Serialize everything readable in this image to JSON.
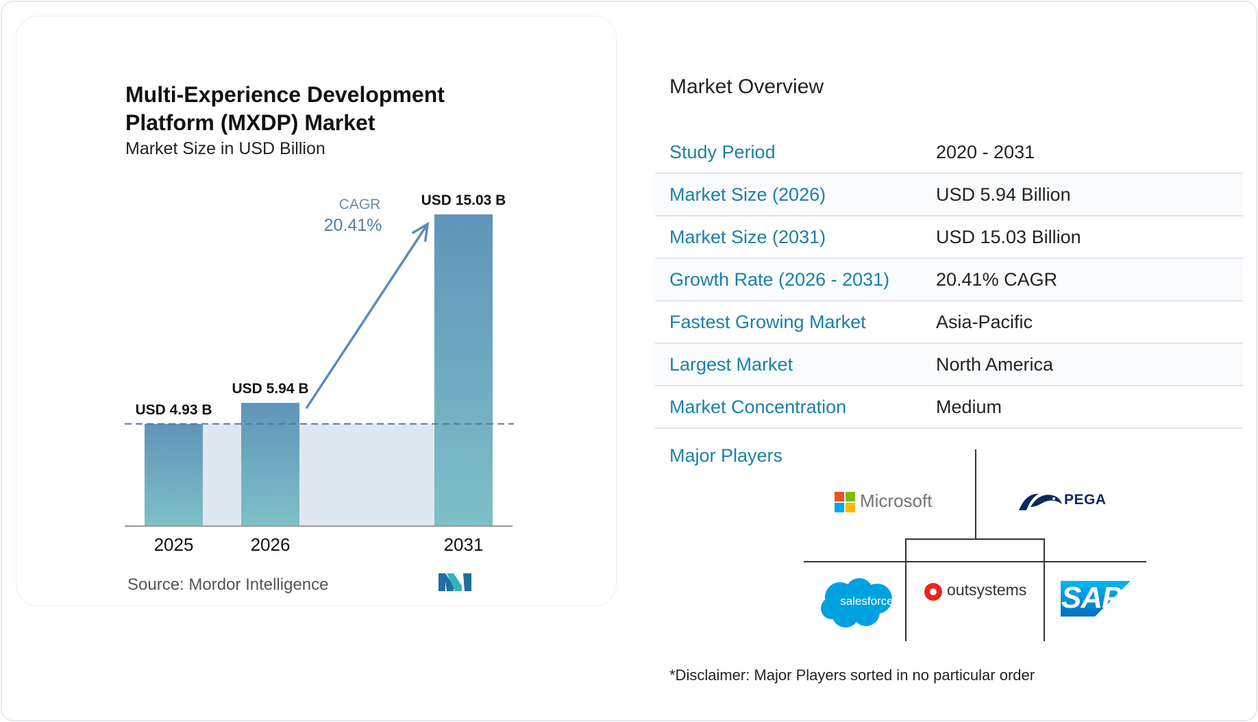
{
  "chart_data": {
    "type": "bar",
    "title": "Multi-Experience Development Platform (MXDP) Market",
    "subtitle": "Market Size in USD Billion",
    "categories": [
      "2025",
      "2026",
      "2031"
    ],
    "values": [
      4.93,
      5.94,
      15.03
    ],
    "data_labels": [
      "USD 4.93 B",
      "USD 5.94 B",
      "USD 15.03 B"
    ],
    "cagr_label": "CAGR",
    "cagr_value": "20.41%",
    "source": "Source: Mordor Intelligence",
    "colors": {
      "bar_top": "#6094b9",
      "bar_bottom": "#7ec0c7",
      "arrow": "#5d8cb3",
      "band": "#dfe8f0"
    }
  },
  "overview": {
    "title": "Market Overview",
    "rows": [
      {
        "label": "Study Period",
        "value": "2020 - 2031"
      },
      {
        "label": "Market Size (2026)",
        "value": "USD 5.94 Billion"
      },
      {
        "label": "Market Size (2031)",
        "value": "USD 15.03 Billion"
      },
      {
        "label": "Growth Rate (2026 - 2031)",
        "value": "20.41% CAGR"
      },
      {
        "label": "Fastest Growing Market",
        "value": "Asia-Pacific"
      },
      {
        "label": "Largest Market",
        "value": "North America"
      },
      {
        "label": "Market Concentration",
        "value": "Medium"
      }
    ]
  },
  "major_players": {
    "label": "Major Players",
    "players": [
      "Microsoft",
      "PEGA",
      "salesforce",
      "outsystems",
      "SAP"
    ]
  },
  "disclaimer": "*Disclaimer: Major Players sorted in no particular order"
}
